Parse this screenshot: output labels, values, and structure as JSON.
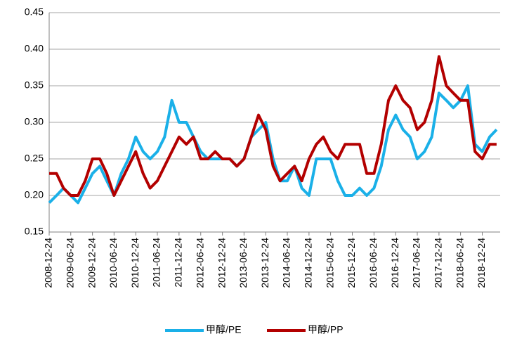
{
  "chart_data": {
    "type": "line",
    "x": [
      "2008-12-24",
      "2009-02-24",
      "2009-04-24",
      "2009-06-24",
      "2009-08-24",
      "2009-10-24",
      "2009-12-24",
      "2010-02-24",
      "2010-04-24",
      "2010-06-24",
      "2010-08-24",
      "2010-10-24",
      "2010-12-24",
      "2011-02-24",
      "2011-04-24",
      "2011-06-24",
      "2011-08-24",
      "2011-10-24",
      "2011-12-24",
      "2012-02-24",
      "2012-04-24",
      "2012-06-24",
      "2012-08-24",
      "2012-10-24",
      "2012-12-24",
      "2013-02-24",
      "2013-04-24",
      "2013-06-24",
      "2013-08-24",
      "2013-10-24",
      "2013-12-24",
      "2014-02-24",
      "2014-04-24",
      "2014-06-24",
      "2014-08-24",
      "2014-10-24",
      "2014-12-24",
      "2015-02-24",
      "2015-04-24",
      "2015-06-24",
      "2015-08-24",
      "2015-10-24",
      "2015-12-24",
      "2016-02-24",
      "2016-04-24",
      "2016-06-24",
      "2016-08-24",
      "2016-10-24",
      "2016-12-24",
      "2017-02-24",
      "2017-04-24",
      "2017-06-24",
      "2017-08-24",
      "2017-10-24",
      "2017-12-24",
      "2018-02-24",
      "2018-04-24",
      "2018-06-24",
      "2018-08-24",
      "2018-10-24",
      "2018-12-24",
      "2019-02-24",
      "2019-04-24"
    ],
    "series": [
      {
        "name": "甲醇/PE",
        "color": "#1ab0e8",
        "values": [
          0.19,
          0.2,
          0.21,
          0.2,
          0.19,
          0.21,
          0.23,
          0.24,
          0.22,
          0.2,
          0.23,
          0.25,
          0.28,
          0.26,
          0.25,
          0.26,
          0.28,
          0.33,
          0.3,
          0.3,
          0.28,
          0.26,
          0.25,
          0.25,
          0.25,
          0.25,
          0.24,
          0.25,
          0.28,
          0.29,
          0.3,
          0.25,
          0.22,
          0.22,
          0.24,
          0.21,
          0.2,
          0.25,
          0.25,
          0.25,
          0.22,
          0.2,
          0.2,
          0.21,
          0.2,
          0.21,
          0.24,
          0.29,
          0.31,
          0.29,
          0.28,
          0.25,
          0.26,
          0.28,
          0.34,
          0.33,
          0.32,
          0.33,
          0.35,
          0.27,
          0.26,
          0.28,
          0.29
        ]
      },
      {
        "name": "甲醇/PP",
        "color": "#b30000",
        "values": [
          0.23,
          0.23,
          0.21,
          0.2,
          0.2,
          0.22,
          0.25,
          0.25,
          0.23,
          0.2,
          0.22,
          0.24,
          0.26,
          0.23,
          0.21,
          0.22,
          0.24,
          0.26,
          0.28,
          0.27,
          0.28,
          0.25,
          0.25,
          0.26,
          0.25,
          0.25,
          0.24,
          0.25,
          0.28,
          0.31,
          0.29,
          0.24,
          0.22,
          0.23,
          0.24,
          0.22,
          0.25,
          0.27,
          0.28,
          0.26,
          0.25,
          0.27,
          0.27,
          0.27,
          0.23,
          0.23,
          0.27,
          0.33,
          0.35,
          0.33,
          0.32,
          0.29,
          0.3,
          0.33,
          0.39,
          0.35,
          0.34,
          0.33,
          0.33,
          0.26,
          0.25,
          0.27,
          0.27
        ]
      }
    ],
    "xlim": [
      "2008-12-24",
      "2019-05-24"
    ],
    "xticks": [
      "2008-12-24",
      "2009-06-24",
      "2009-12-24",
      "2010-06-24",
      "2010-12-24",
      "2011-06-24",
      "2011-12-24",
      "2012-06-24",
      "2012-12-24",
      "2013-06-24",
      "2013-12-24",
      "2014-06-24",
      "2014-12-24",
      "2015-06-24",
      "2015-12-24",
      "2016-06-24",
      "2016-12-24",
      "2017-06-24",
      "2017-12-24",
      "2018-06-24",
      "2018-12-24"
    ],
    "ylim": [
      0.15,
      0.45
    ],
    "yticks": [
      0.15,
      {
        "value": 0.2,
        "label": "0.20"
      },
      0.25,
      {
        "value": 0.3,
        "label": "0.30"
      },
      0.35,
      {
        "value": 0.4,
        "label": "0.40"
      },
      0.45
    ],
    "grid": true,
    "legend": "bottom"
  }
}
